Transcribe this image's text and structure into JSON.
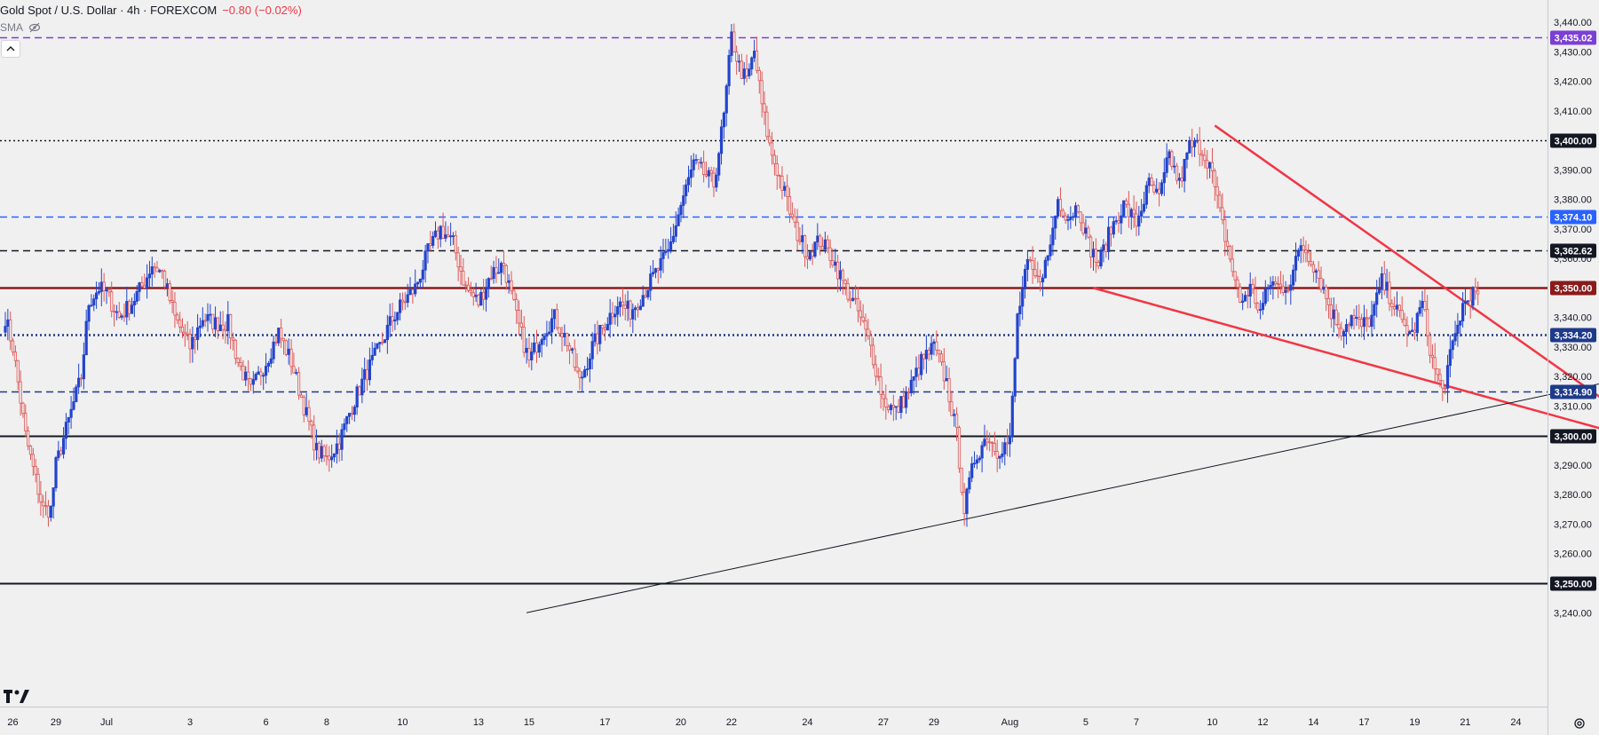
{
  "header": {
    "title": "Gold Spot / U.S. Dollar · 4h · FOREXCOM",
    "change": "−0.80 (−0.02%)",
    "indicator": "SMA",
    "eye_icon": "eye-off-icon",
    "collapse_icon": "chevron-up-icon",
    "logo": "TV",
    "settings_icon": "gear-icon"
  },
  "chart_data": {
    "type": "candlestick",
    "x_tick_labels": [
      "26",
      "29",
      "Jul",
      "3",
      "6",
      "8",
      "10",
      "13",
      "15",
      "17",
      "20",
      "22",
      "24",
      "27",
      "29",
      "Aug",
      "5",
      "7",
      "10",
      "12",
      "14",
      "17",
      "19",
      "21",
      "24",
      "26"
    ],
    "x_tick_bar_index": [
      -37,
      -20,
      0,
      33,
      63,
      87,
      117,
      147,
      167,
      197,
      227,
      247,
      277,
      307,
      327,
      357,
      387,
      407,
      437,
      457,
      477,
      497,
      517,
      537,
      557,
      577
    ],
    "y_ticks": [
      3240,
      3250,
      3260,
      3270,
      3280,
      3290,
      3300,
      3310,
      3320,
      3330,
      3340,
      3350,
      3360,
      3370,
      3380,
      3390,
      3400,
      3410,
      3420,
      3430,
      3440
    ],
    "y_tick_labels": [
      "3,240.00",
      "3,250.00",
      "3,260.00",
      "3,270.00",
      "3,280.00",
      "3,290.00",
      "3,300.00",
      "3,310.00",
      "3,320.00",
      "3,330.00",
      "3,340.00",
      "3,350.00",
      "3,360.00",
      "3,370.00",
      "3,380.00",
      "3,390.00",
      "3,400.00",
      "3,410.00",
      "3,420.00",
      "3,430.00",
      "3,440.00"
    ],
    "ylim": [
      3238,
      3441
    ],
    "up_color": "#2244cc",
    "down_color": "#e05555",
    "price_lines": [
      {
        "value": 3435.02,
        "label": "3,435.02",
        "color": "#7b3fd6",
        "style": "dashed"
      },
      {
        "value": 3400.0,
        "label": "3,400.00",
        "color": "#131722",
        "style": "dotted"
      },
      {
        "value": 3374.1,
        "label": "3,374.10",
        "color": "#2962ff",
        "style": "dashed"
      },
      {
        "value": 3362.62,
        "label": "3,362.62",
        "color": "#131722",
        "style": "dashed"
      },
      {
        "value": 3350.0,
        "label": "3,350.00",
        "color": "#8b1a1a",
        "style": "solid"
      },
      {
        "value": 3334.2,
        "label": "3,334.20",
        "color": "#1e3a8a",
        "style": "dotted"
      },
      {
        "value": 3314.9,
        "label": "3,314.90",
        "color": "#1e3a8a",
        "style": "dashed"
      },
      {
        "value": 3300.0,
        "label": "3,300.00",
        "color": "#131722",
        "style": "solid"
      },
      {
        "value": 3250.0,
        "label": "3,250.00",
        "color": "#131722",
        "style": "solid"
      }
    ],
    "trendlines": [
      {
        "name": "wedge-upper",
        "color": "#f23645",
        "points": [
          [
            438,
            3405
          ],
          [
            625,
            3292
          ]
        ]
      },
      {
        "name": "wedge-lower",
        "color": "#f23645",
        "points": [
          [
            390,
            3350
          ],
          [
            630,
            3293
          ]
        ]
      },
      {
        "name": "support-trendline",
        "color": "#131722",
        "points": [
          [
            166,
            3240
          ],
          [
            620,
            3323
          ]
        ]
      }
    ],
    "candle_anchors": [
      [
        -40,
        3340
      ],
      [
        -37,
        3330
      ],
      [
        -32,
        3300
      ],
      [
        -28,
        3285
      ],
      [
        -25,
        3275
      ],
      [
        -22,
        3275
      ],
      [
        -20,
        3290
      ],
      [
        -15,
        3305
      ],
      [
        -10,
        3320
      ],
      [
        -7,
        3345
      ],
      [
        -3,
        3350
      ],
      [
        0,
        3348
      ],
      [
        5,
        3340
      ],
      [
        10,
        3345
      ],
      [
        15,
        3352
      ],
      [
        18,
        3358
      ],
      [
        22,
        3355
      ],
      [
        27,
        3340
      ],
      [
        33,
        3330
      ],
      [
        38,
        3340
      ],
      [
        43,
        3338
      ],
      [
        48,
        3338
      ],
      [
        52,
        3325
      ],
      [
        57,
        3315
      ],
      [
        63,
        3325
      ],
      [
        68,
        3335
      ],
      [
        73,
        3325
      ],
      [
        78,
        3310
      ],
      [
        83,
        3295
      ],
      [
        87,
        3292
      ],
      [
        92,
        3298
      ],
      [
        97,
        3310
      ],
      [
        102,
        3320
      ],
      [
        108,
        3330
      ],
      [
        112,
        3338
      ],
      [
        117,
        3345
      ],
      [
        122,
        3350
      ],
      [
        127,
        3362
      ],
      [
        132,
        3370
      ],
      [
        137,
        3365
      ],
      [
        142,
        3350
      ],
      [
        147,
        3345
      ],
      [
        152,
        3355
      ],
      [
        157,
        3358
      ],
      [
        162,
        3340
      ],
      [
        167,
        3325
      ],
      [
        172,
        3335
      ],
      [
        177,
        3340
      ],
      [
        182,
        3332
      ],
      [
        187,
        3318
      ],
      [
        192,
        3330
      ],
      [
        197,
        3338
      ],
      [
        202,
        3345
      ],
      [
        207,
        3342
      ],
      [
        212,
        3348
      ],
      [
        217,
        3355
      ],
      [
        222,
        3362
      ],
      [
        227,
        3378
      ],
      [
        232,
        3392
      ],
      [
        237,
        3388
      ],
      [
        240,
        3385
      ],
      [
        244,
        3408
      ],
      [
        247,
        3435
      ],
      [
        250,
        3425
      ],
      [
        253,
        3420
      ],
      [
        256,
        3430
      ],
      [
        259,
        3412
      ],
      [
        262,
        3398
      ],
      [
        265,
        3390
      ],
      [
        268,
        3382
      ],
      [
        272,
        3370
      ],
      [
        277,
        3362
      ],
      [
        282,
        3366
      ],
      [
        287,
        3360
      ],
      [
        292,
        3350
      ],
      [
        297,
        3342
      ],
      [
        302,
        3330
      ],
      [
        307,
        3312
      ],
      [
        312,
        3308
      ],
      [
        317,
        3315
      ],
      [
        322,
        3325
      ],
      [
        327,
        3330
      ],
      [
        332,
        3318
      ],
      [
        336,
        3300
      ],
      [
        339,
        3275
      ],
      [
        343,
        3292
      ],
      [
        348,
        3300
      ],
      [
        352,
        3295
      ],
      [
        357,
        3298
      ],
      [
        360,
        3340
      ],
      [
        364,
        3358
      ],
      [
        368,
        3352
      ],
      [
        372,
        3360
      ],
      [
        376,
        3380
      ],
      [
        380,
        3374
      ],
      [
        384,
        3378
      ],
      [
        388,
        3365
      ],
      [
        392,
        3358
      ],
      [
        397,
        3370
      ],
      [
        402,
        3378
      ],
      [
        407,
        3372
      ],
      [
        412,
        3385
      ],
      [
        416,
        3380
      ],
      [
        420,
        3395
      ],
      [
        424,
        3385
      ],
      [
        428,
        3398
      ],
      [
        432,
        3398
      ],
      [
        436,
        3392
      ],
      [
        440,
        3375
      ],
      [
        444,
        3360
      ],
      [
        448,
        3345
      ],
      [
        452,
        3350
      ],
      [
        456,
        3342
      ],
      [
        460,
        3352
      ],
      [
        464,
        3350
      ],
      [
        468,
        3352
      ],
      [
        472,
        3365
      ],
      [
        476,
        3360
      ],
      [
        480,
        3352
      ],
      [
        484,
        3342
      ],
      [
        488,
        3336
      ],
      [
        492,
        3340
      ],
      [
        496,
        3337
      ],
      [
        500,
        3340
      ],
      [
        504,
        3352
      ],
      [
        508,
        3346
      ],
      [
        512,
        3338
      ],
      [
        516,
        3334
      ],
      [
        520,
        3345
      ],
      [
        524,
        3325
      ],
      [
        528,
        3315
      ],
      [
        532,
        3330
      ],
      [
        536,
        3344
      ],
      [
        540,
        3348
      ],
      [
        542,
        3348
      ]
    ]
  }
}
